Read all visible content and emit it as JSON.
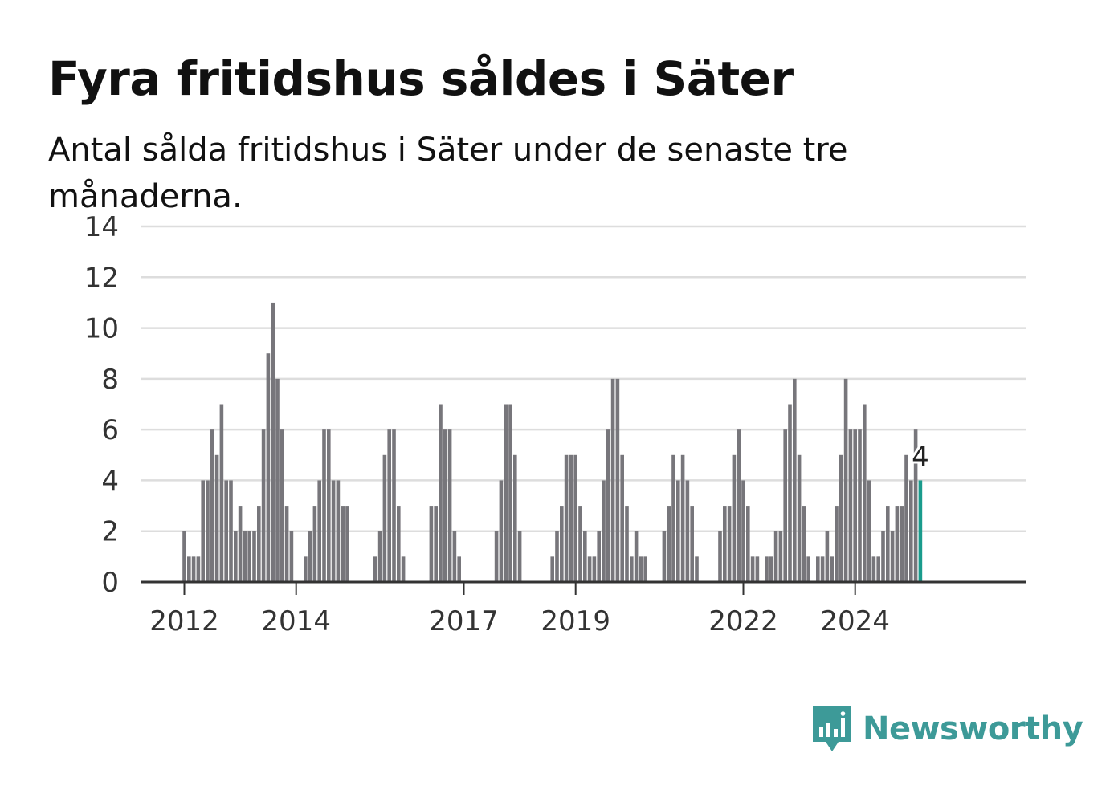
{
  "title": "Fyra fritidshus såldes i Säter",
  "subtitle": "Antal sålda fritidshus i Säter under de senaste tre månaderna.",
  "brand": {
    "name": "Newsworthy",
    "icon": "newsworthy-chart-bubble-icon",
    "color": "#3d9a98"
  },
  "colors": {
    "bar": "#77767b",
    "highlight": "#1a9b8c",
    "grid": "#dddddd",
    "axis": "#333333",
    "text": "#333333"
  },
  "chart_data": {
    "type": "bar",
    "x_start": "2012-01",
    "x_step": "quarter (rolling three months, monthly)",
    "xticks": [
      "2012",
      "2014",
      "2017",
      "2019",
      "2022",
      "2024"
    ],
    "yticks": [
      0,
      2,
      4,
      6,
      8,
      10,
      12,
      14
    ],
    "ylim": [
      0,
      14
    ],
    "grid": true,
    "highlight_label": "4",
    "values": [
      2,
      1,
      1,
      1,
      4,
      4,
      6,
      5,
      7,
      4,
      4,
      2,
      3,
      2,
      2,
      2,
      3,
      6,
      9,
      11,
      8,
      6,
      3,
      2,
      0,
      0,
      1,
      2,
      3,
      4,
      6,
      6,
      4,
      4,
      3,
      3,
      0,
      0,
      0,
      0,
      0,
      1,
      2,
      5,
      6,
      6,
      3,
      1,
      0,
      0,
      0,
      0,
      0,
      3,
      3,
      7,
      6,
      6,
      2,
      1,
      0,
      0,
      0,
      0,
      0,
      0,
      0,
      2,
      4,
      7,
      7,
      5,
      2,
      0,
      0,
      0,
      0,
      0,
      0,
      1,
      2,
      3,
      5,
      5,
      5,
      3,
      2,
      1,
      1,
      2,
      4,
      6,
      8,
      8,
      5,
      3,
      1,
      2,
      1,
      1,
      0,
      0,
      0,
      2,
      3,
      5,
      4,
      5,
      4,
      3,
      1,
      0,
      0,
      0,
      0,
      2,
      3,
      3,
      5,
      6,
      4,
      3,
      1,
      1,
      0,
      1,
      1,
      2,
      2,
      6,
      7,
      8,
      5,
      3,
      1,
      0,
      1,
      1,
      2,
      1,
      3,
      5,
      8,
      6,
      6,
      6,
      7,
      4,
      1,
      1,
      2,
      3,
      2,
      3,
      3,
      5,
      4,
      6,
      4
    ]
  }
}
